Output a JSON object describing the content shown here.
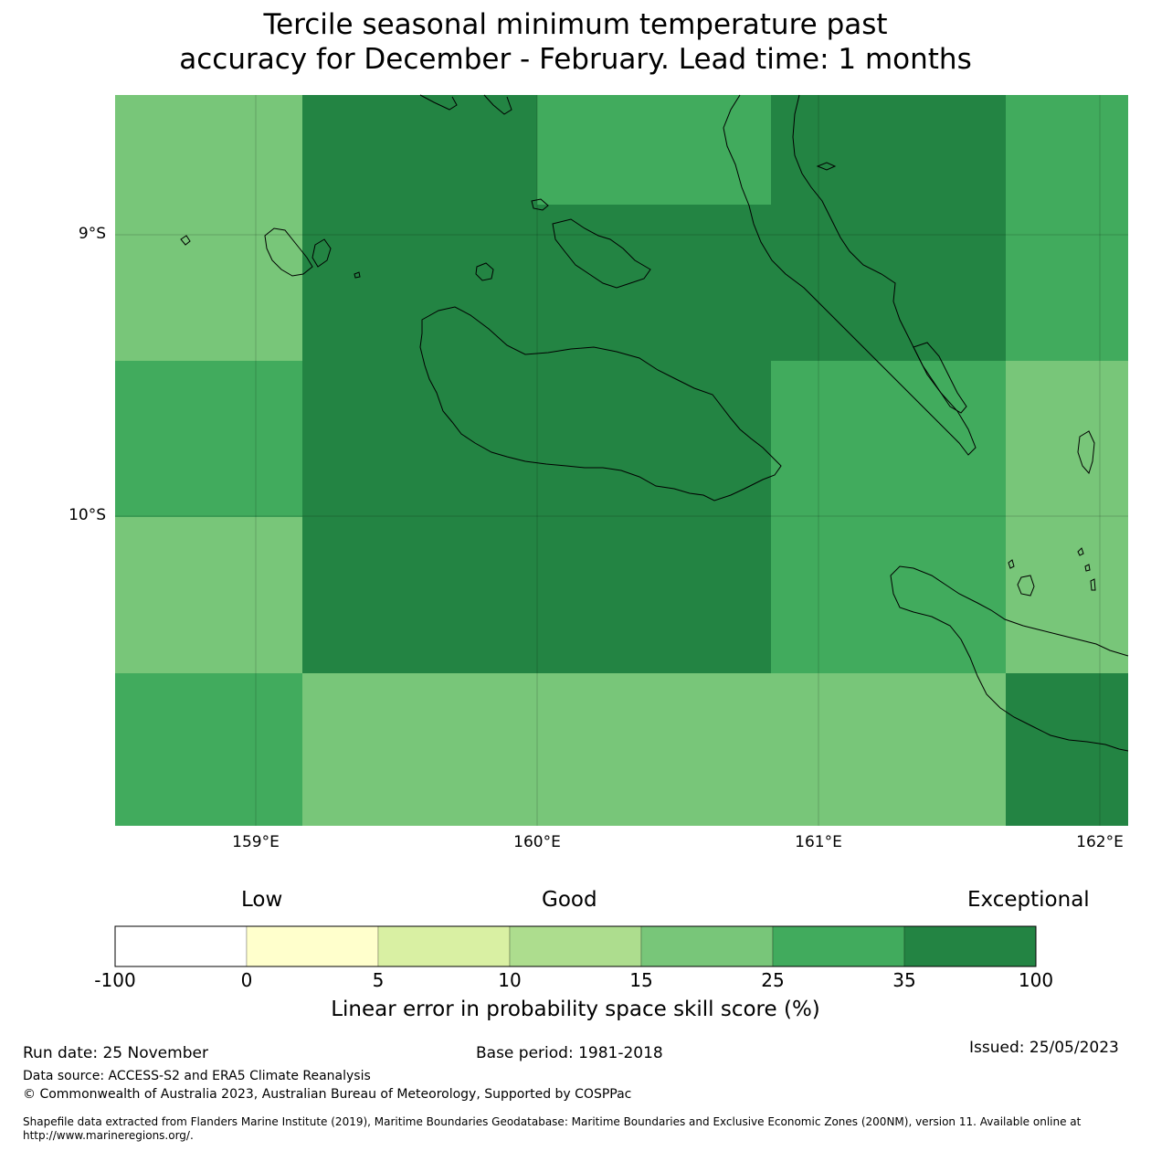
{
  "title": {
    "line1": "Tercile seasonal minimum temperature past",
    "line2": "accuracy for December - February. Lead time: 1 months"
  },
  "map": {
    "lat_labels": [
      "9°S",
      "10°S"
    ],
    "lon_labels": [
      "159°E",
      "160°E",
      "161°E",
      "162°E"
    ],
    "skill_grid": {
      "lon_edges": [
        158.5,
        159.17,
        160.0,
        160.83,
        161.67,
        162.1
      ],
      "lat_edges": [
        -8.5,
        -8.9,
        -9.45,
        -10.0,
        -10.55,
        -11.1
      ],
      "levels": [
        [
          "15-25",
          "35-100",
          "25-35",
          "35-100",
          "25-35"
        ],
        [
          "15-25",
          "35-100",
          "35-100",
          "35-100",
          "25-35"
        ],
        [
          "25-35",
          "35-100",
          "35-100",
          "25-35",
          "15-25"
        ],
        [
          "15-25",
          "35-100",
          "35-100",
          "25-35",
          "15-25"
        ],
        [
          "25-35",
          "15-25",
          "15-25",
          "15-25",
          "35-100"
        ]
      ],
      "note": "Top row of columns 2 and 3 split: columns 160.0-160.83 shows 25-35 north of ~8.9S"
    }
  },
  "colorbar": {
    "quality_labels": {
      "low": "Low",
      "good": "Good",
      "exceptional": "Exceptional"
    },
    "ticks": [
      "-100",
      "0",
      "5",
      "10",
      "15",
      "25",
      "35",
      "100"
    ],
    "colors": [
      "#ffffff",
      "#ffffcc",
      "#d9f0a3",
      "#addd8e",
      "#78c679",
      "#41ab5d",
      "#238443"
    ],
    "label": "Linear error in probability space skill score (%)"
  },
  "footer": {
    "run_date": "Run date: 25 November",
    "base_period": "Base period: 1981-2018",
    "issued": "Issued: 25/05/2023",
    "data_source": "Data source: ACCESS-S2 and ERA5 Climate Reanalysis",
    "copyright": "© Commonwealth of Australia 2023, Australian Bureau of Meteorology, Supported by COSPPac",
    "shapefile": "Shapefile data extracted from Flanders Marine Institute (2019), Maritime Boundaries Geodatabase: Maritime Boundaries and Exclusive Economic Zones (200NM), version 11. Available online at http://www.marineregions.org/."
  }
}
